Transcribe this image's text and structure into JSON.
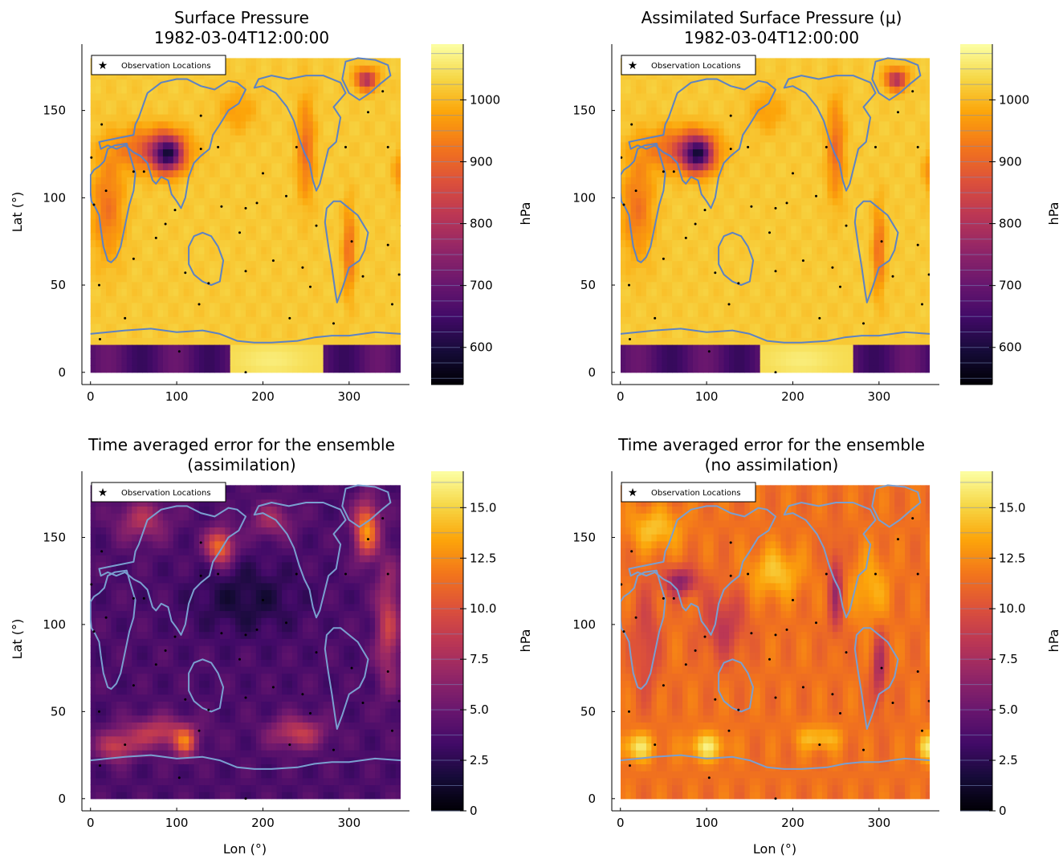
{
  "chart_data": [
    {
      "type": "heatmap",
      "title": [
        "Surface Pressure",
        "1982-03-04T12:00:00"
      ],
      "xlabel": "",
      "ylabel": "Lat (°)",
      "xlim": [
        -10,
        370
      ],
      "ylim": [
        -7,
        188
      ],
      "xticks": [
        "0",
        "100",
        "200",
        "300"
      ],
      "yticks": [
        "0",
        "50",
        "100",
        "150"
      ],
      "x_range": [
        0,
        360
      ],
      "y_range": [
        0,
        180
      ],
      "colorbar": {
        "label": "hPa",
        "min": 540,
        "max": 1090,
        "ticks": [
          "600",
          "700",
          "800",
          "900",
          "1000"
        ],
        "colormap": "inferno"
      },
      "legend": {
        "label": "Observation Locations",
        "position": "top-left"
      },
      "coastlines": true,
      "field": "pressure"
    },
    {
      "type": "heatmap",
      "title": [
        "Assimilated Surface Pressure (μ)",
        "1982-03-04T12:00:00"
      ],
      "xlabel": "",
      "ylabel": "",
      "xlim": [
        -10,
        370
      ],
      "ylim": [
        -7,
        188
      ],
      "xticks": [
        "0",
        "100",
        "200",
        "300"
      ],
      "yticks": [
        "0",
        "50",
        "100",
        "150"
      ],
      "x_range": [
        0,
        360
      ],
      "y_range": [
        0,
        180
      ],
      "colorbar": {
        "label": "hPa",
        "min": 540,
        "max": 1090,
        "ticks": [
          "600",
          "700",
          "800",
          "900",
          "1000"
        ],
        "colormap": "inferno"
      },
      "legend": {
        "label": "Observation Locations",
        "position": "top-left"
      },
      "coastlines": true,
      "field": "pressure"
    },
    {
      "type": "heatmap",
      "title": [
        "Time averaged error for the ensemble",
        "(assimilation)"
      ],
      "xlabel": "Lon (°)",
      "ylabel": "Lat (°)",
      "xlim": [
        -10,
        370
      ],
      "ylim": [
        -7,
        188
      ],
      "xticks": [
        "0",
        "100",
        "200",
        "300"
      ],
      "yticks": [
        "0",
        "50",
        "100",
        "150"
      ],
      "x_range": [
        0,
        360
      ],
      "y_range": [
        0,
        180
      ],
      "colorbar": {
        "label": "hPa",
        "min": 0,
        "max": 16.8,
        "ticks": [
          "0",
          "2.5",
          "5.0",
          "7.5",
          "10.0",
          "12.5",
          "15.0"
        ],
        "colormap": "inferno"
      },
      "legend": {
        "label": "Observation Locations",
        "position": "top-left"
      },
      "coastlines": true,
      "field": "error_assim"
    },
    {
      "type": "heatmap",
      "title": [
        "Time averaged error for the ensemble",
        "(no assimilation)"
      ],
      "xlabel": "Lon (°)",
      "ylabel": "",
      "xlim": [
        -10,
        370
      ],
      "ylim": [
        -7,
        188
      ],
      "xticks": [
        "0",
        "100",
        "200",
        "300"
      ],
      "yticks": [
        "0",
        "50",
        "100",
        "150"
      ],
      "x_range": [
        0,
        360
      ],
      "y_range": [
        0,
        180
      ],
      "colorbar": {
        "label": "hPa",
        "min": 0,
        "max": 16.8,
        "ticks": [
          "0",
          "2.5",
          "5.0",
          "7.5",
          "10.0",
          "12.5",
          "15.0"
        ],
        "colormap": "inferno"
      },
      "legend": {
        "label": "Observation Locations",
        "position": "top-left"
      },
      "coastlines": true,
      "field": "error_noassim"
    }
  ],
  "observations": [
    [
      1,
      123
    ],
    [
      4,
      96
    ],
    [
      10,
      50
    ],
    [
      11,
      19
    ],
    [
      13,
      142
    ],
    [
      18,
      104
    ],
    [
      40,
      31
    ],
    [
      50,
      115
    ],
    [
      50,
      65
    ],
    [
      62,
      115
    ],
    [
      76,
      77
    ],
    [
      87,
      85
    ],
    [
      98,
      93
    ],
    [
      103,
      12
    ],
    [
      110,
      57
    ],
    [
      126,
      39
    ],
    [
      128,
      128
    ],
    [
      137,
      51
    ],
    [
      128,
      147
    ],
    [
      148,
      129
    ],
    [
      152,
      95
    ],
    [
      173,
      80
    ],
    [
      180,
      94
    ],
    [
      180,
      0
    ],
    [
      180,
      58
    ],
    [
      193,
      97
    ],
    [
      200,
      114
    ],
    [
      212,
      64
    ],
    [
      227,
      101
    ],
    [
      231,
      31
    ],
    [
      239,
      129
    ],
    [
      246,
      60
    ],
    [
      255,
      49
    ],
    [
      262,
      84
    ],
    [
      282,
      28
    ],
    [
      296,
      129
    ],
    [
      303,
      75
    ],
    [
      345,
      73
    ],
    [
      350,
      39
    ],
    [
      358,
      56
    ],
    [
      361,
      84
    ],
    [
      316,
      55
    ],
    [
      322,
      149
    ],
    [
      339,
      161
    ],
    [
      345,
      129
    ]
  ]
}
